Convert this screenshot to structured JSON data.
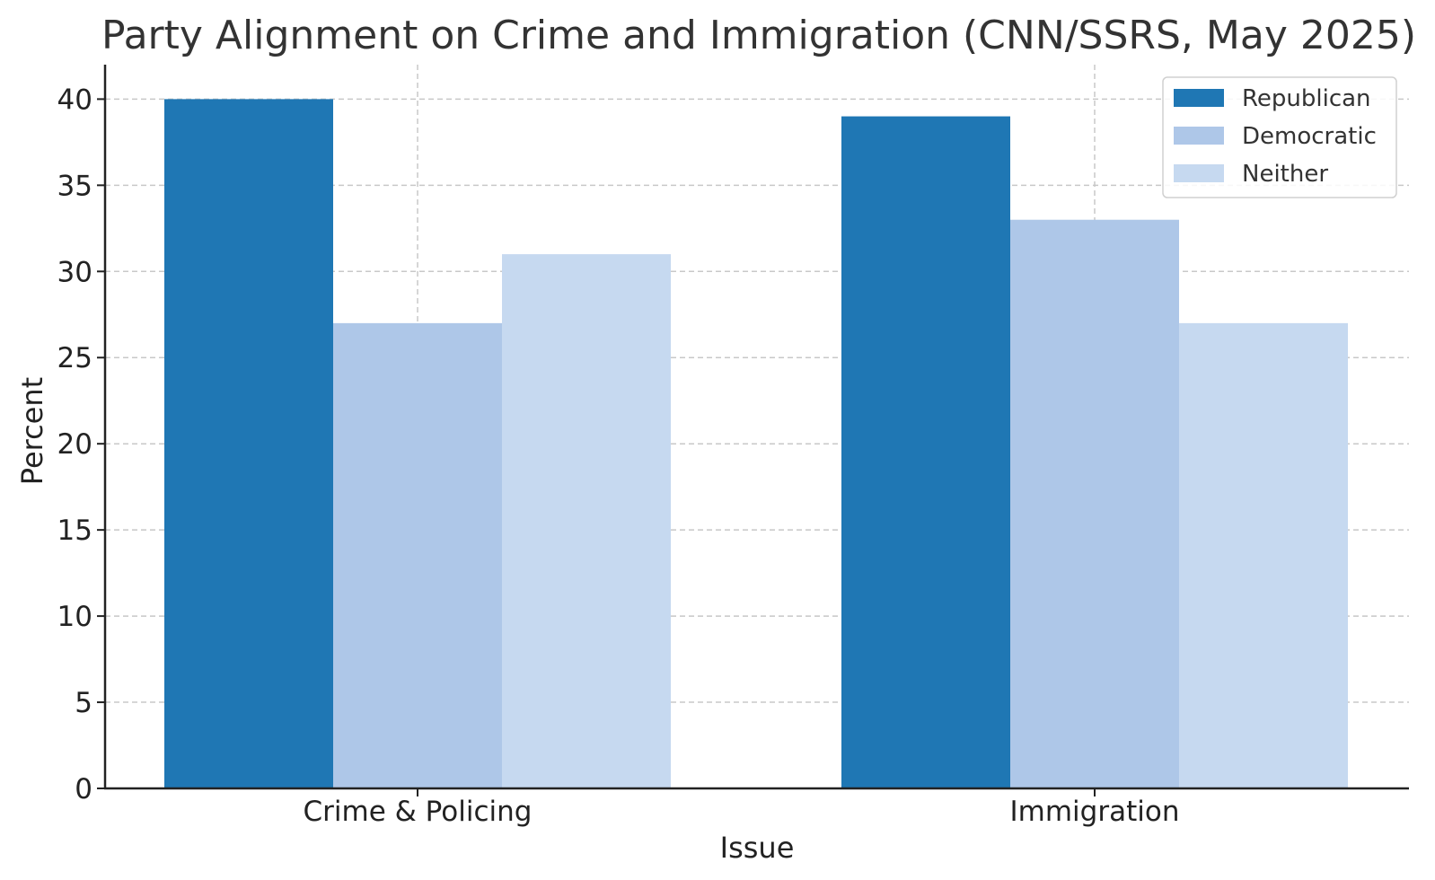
{
  "chart_data": {
    "type": "bar",
    "title": "Party Alignment on Crime and Immigration (CNN/SSRS, May 2025)",
    "xlabel": "Issue",
    "ylabel": "Percent",
    "categories": [
      "Crime & Policing",
      "Immigration"
    ],
    "series": [
      {
        "name": "Republican",
        "values": [
          40,
          39
        ],
        "color": "#1f77b4"
      },
      {
        "name": "Democratic",
        "values": [
          27,
          33
        ],
        "color": "#aec7e8"
      },
      {
        "name": "Neither",
        "values": [
          31,
          27
        ],
        "color": "#c6d9f0"
      }
    ],
    "ylim": [
      0,
      42
    ],
    "yticks": [
      0,
      5,
      10,
      15,
      20,
      25,
      30,
      35,
      40
    ],
    "grid": true,
    "legend_position": "top-right"
  }
}
